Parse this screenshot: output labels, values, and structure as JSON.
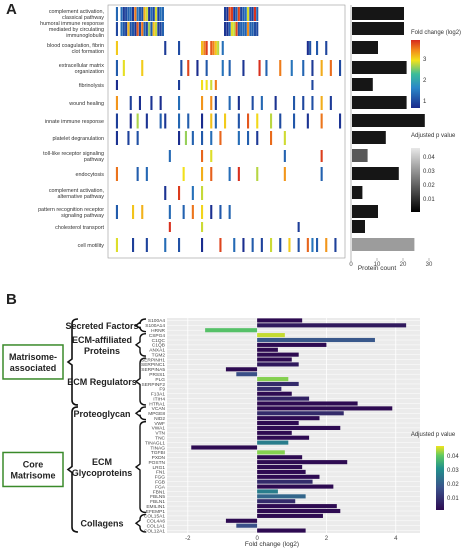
{
  "panelA": {
    "label": "A",
    "heatmap_terms": [
      "complement activation, classical pathway",
      "humoral immune response mediated by circulating immunoglobulin",
      "blood coagulation, fibrin clot formation",
      "extracellular matrix organization",
      "fibrinolysis",
      "wound healing",
      "innate immune response",
      "platelet degranulation",
      "toll-like receptor signaling pathway",
      "endocytosis",
      "complement activation, alternative pathway",
      "pattern recognition receptor signaling pathway",
      "cholesterol transport",
      "cell motility"
    ],
    "fold_legend": {
      "title": "Fold change (log2)",
      "ticks": [
        "3",
        "2",
        "1"
      ]
    },
    "padj_legend": {
      "title": "Adjusted p value",
      "ticks": [
        "0.04",
        "0.03",
        "0.02",
        "0.01"
      ]
    },
    "colors": {
      "high": "#d62a1e",
      "mid": "#f2e21b",
      "low": "#1a2a8c"
    }
  },
  "chart_data": [
    {
      "type": "bar",
      "orientation": "horizontal",
      "categories": [
        "complement activation, classical pathway",
        "humoral immune response mediated by circulating immunoglobulin",
        "blood coagulation, fibrin clot formation",
        "extracellular matrix organization",
        "fibrinolysis",
        "wound healing",
        "innate immune response",
        "platelet degranulation",
        "toll-like receptor signaling pathway",
        "endocytosis",
        "complement activation, alternative pathway",
        "pattern recognition receptor signaling pathway",
        "cholesterol transport",
        "cell motility"
      ],
      "values": [
        20,
        20,
        10,
        21,
        8,
        21,
        28,
        13,
        6,
        18,
        4,
        10,
        5,
        24
      ],
      "color_values": [
        0.005,
        0.005,
        0.005,
        0.005,
        0.005,
        0.005,
        0.005,
        0.005,
        0.02,
        0.005,
        0.005,
        0.005,
        0.005,
        0.035
      ],
      "xlabel": "Protein count",
      "xticks": [
        0,
        10,
        20,
        30
      ],
      "xlim": [
        0,
        30
      ]
    },
    {
      "type": "bar",
      "orientation": "horizontal",
      "groups": [
        {
          "name": "Secreted Factors",
          "members": [
            "S100A4",
            "S100A14",
            "HRNR"
          ]
        },
        {
          "name": "ECM-affiliated Proteins",
          "members": [
            "CSPG4",
            "C1QC",
            "C1QB",
            "ANXA1",
            "TGM2"
          ]
        },
        {
          "name": "ECM Regulators",
          "members": [
            "SERPINH1",
            "SERPINC1",
            "SERPINA5",
            "PRSS1",
            "PLG",
            "SERPINF2",
            "F9",
            "F13A1",
            "ITIH4",
            "HTRA1"
          ]
        },
        {
          "name": "Proteoglycan",
          "members": [
            "VCAN",
            "MPGE8",
            "NID2"
          ]
        },
        {
          "name": "ECM Glycoproteins",
          "members": [
            "VWF",
            "VWA1",
            "VTN",
            "TNC",
            "TINAGL1",
            "TINAG",
            "TGFBI",
            "PXDN",
            "POSTN",
            "LRG1",
            "FN1",
            "FGG",
            "FGB",
            "FGA",
            "FBN1",
            "FBLN5",
            "FBLN1",
            "EMILIN1",
            "EFEMP1"
          ]
        },
        {
          "name": "Collagens",
          "members": [
            "COL15A1",
            "COL4A6",
            "COL1A1",
            "COL12A1"
          ]
        }
      ],
      "super_groups": [
        {
          "name": "Matrisome-associated",
          "groups": [
            "Secreted Factors",
            "ECM-affiliated Proteins",
            "ECM Regulators"
          ]
        },
        {
          "name": "Core Matrisome",
          "groups": [
            "Proteoglycan",
            "ECM Glycoproteins",
            "Collagens"
          ]
        }
      ],
      "categories": [
        "S100A4",
        "S100A14",
        "HRNR",
        "CSPG4",
        "C1QC",
        "C1QB",
        "ANXA1",
        "TGM2",
        "SERPINH1",
        "SERPINC1",
        "SERPINA5",
        "PRSS1",
        "PLG",
        "SERPINF2",
        "F9",
        "F13A1",
        "ITIH4",
        "HTRA1",
        "VCAN",
        "MPGE8",
        "NID2",
        "VWF",
        "VWA1",
        "VTN",
        "TNC",
        "TINAGL1",
        "TINAG",
        "TGFBI",
        "PXDN",
        "POSTN",
        "LRG1",
        "FN1",
        "FGG",
        "FGB",
        "FGA",
        "FBN1",
        "FBLN5",
        "FBLN1",
        "EMILIN1",
        "EFEMP1",
        "COL15A1",
        "COL4A6",
        "COL1A1",
        "COL12A1"
      ],
      "values": [
        1.3,
        4.3,
        -1.5,
        0.8,
        3.4,
        2.0,
        0.6,
        1.2,
        1.0,
        1.2,
        -0.9,
        -0.6,
        0.9,
        1.2,
        0.7,
        1.0,
        1.5,
        2.9,
        3.9,
        2.5,
        1.8,
        1.2,
        2.4,
        1.0,
        1.5,
        0.9,
        -1.9,
        0.8,
        1.3,
        2.6,
        1.3,
        1.4,
        1.8,
        1.6,
        2.2,
        0.6,
        1.4,
        1.1,
        2.3,
        2.4,
        1.9,
        -0.9,
        -0.6,
        1.4
      ],
      "padj": [
        0.005,
        0.008,
        0.042,
        0.048,
        0.022,
        0.005,
        0.005,
        0.005,
        0.005,
        0.008,
        0.005,
        0.02,
        0.045,
        0.012,
        0.012,
        0.005,
        0.01,
        0.005,
        0.005,
        0.012,
        0.005,
        0.005,
        0.005,
        0.005,
        0.005,
        0.03,
        0.005,
        0.045,
        0.005,
        0.005,
        0.005,
        0.005,
        0.005,
        0.012,
        0.005,
        0.03,
        0.025,
        0.012,
        0.005,
        0.005,
        0.005,
        0.005,
        0.02,
        0.005
      ],
      "xlabel": "Fold change (log2)",
      "xticks": [
        -2,
        0,
        2,
        4
      ],
      "xlim": [
        -2.6,
        4.7
      ],
      "legend": {
        "title": "Adjusted p value",
        "ticks": [
          "0.04",
          "0.03",
          "0.02",
          "0.01"
        ],
        "placement": "right"
      }
    }
  ],
  "panelB": {
    "label": "B"
  }
}
